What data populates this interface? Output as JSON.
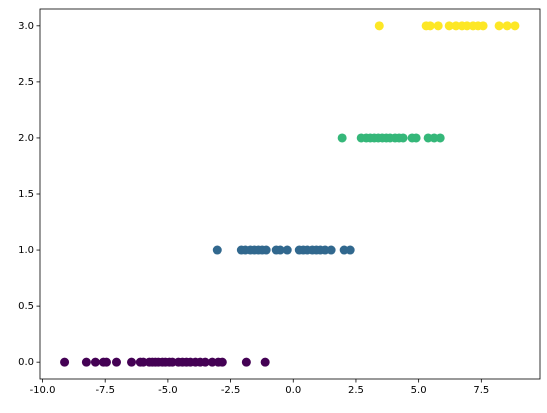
{
  "chart_data": {
    "type": "scatter",
    "xlim": [
      -10.1,
      9.84
    ],
    "ylim": [
      -0.15,
      3.15
    ],
    "xticks": [
      {
        "value": -10,
        "label": "-10.0"
      },
      -7.5,
      {
        "value": -5,
        "label": "-5.0"
      },
      -2.5,
      {
        "value": 0,
        "label": "0.0"
      },
      2.5,
      {
        "value": 5,
        "label": "5.0"
      },
      7.5
    ],
    "yticks": [
      {
        "value": 0,
        "label": "0.0"
      },
      0.5,
      {
        "value": 1,
        "label": "1.0"
      },
      1.5,
      {
        "value": 2,
        "label": "2.0"
      },
      2.5,
      {
        "value": 3,
        "label": "3.0"
      }
    ],
    "series": [
      {
        "color": "#440154",
        "x": [
          -9.12,
          -8.25,
          -7.89,
          -7.57,
          -7.45,
          -7.05,
          -6.45,
          -6.1,
          -5.98,
          -5.74,
          -5.62,
          -5.5,
          -5.38,
          -5.22,
          -5.1,
          -4.94,
          -4.82,
          -4.58,
          -4.42,
          -4.26,
          -4.1,
          -3.9,
          -3.71,
          -3.51,
          -3.23,
          -2.99,
          -2.83,
          -1.87,
          -1.12
        ],
        "values": [
          0,
          0,
          0,
          0,
          0,
          0,
          0,
          0,
          0,
          0,
          0,
          0,
          0,
          0,
          0,
          0,
          0,
          0,
          0,
          0,
          0,
          0,
          0,
          0,
          0,
          0,
          0,
          0,
          0
        ]
      },
      {
        "color": "#31688e",
        "x": [
          -3.03,
          -2.07,
          -1.91,
          -1.71,
          -1.55,
          -1.39,
          -1.24,
          -1.08,
          -0.68,
          -0.52,
          -0.24,
          0.24,
          0.4,
          0.56,
          0.76,
          0.92,
          1.08,
          1.27,
          1.51,
          2.03,
          2.27
        ],
        "values": [
          1,
          1,
          1,
          1,
          1,
          1,
          1,
          1,
          1,
          1,
          1,
          1,
          1,
          1,
          1,
          1,
          1,
          1,
          1,
          1,
          1
        ]
      },
      {
        "color": "#35b779",
        "x": [
          1.95,
          2.71,
          2.91,
          3.07,
          3.23,
          3.39,
          3.55,
          3.71,
          3.86,
          4.06,
          4.22,
          4.38,
          4.74,
          4.9,
          5.38,
          5.62,
          5.86
        ],
        "values": [
          2,
          2,
          2,
          2,
          2,
          2,
          2,
          2,
          2,
          2,
          2,
          2,
          2,
          2,
          2,
          2,
          2
        ]
      },
      {
        "color": "#fde725",
        "x": [
          3.43,
          5.3,
          5.46,
          5.78,
          6.22,
          6.49,
          6.73,
          6.93,
          7.17,
          7.37,
          7.57,
          8.21,
          8.53,
          8.84
        ],
        "values": [
          3,
          3,
          3,
          3,
          3,
          3,
          3,
          3,
          3,
          3,
          3,
          3,
          3,
          3
        ]
      }
    ]
  }
}
